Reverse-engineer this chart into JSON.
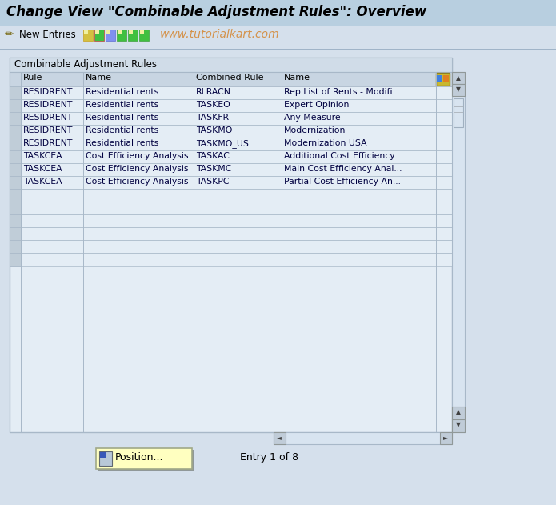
{
  "title": "Change View \"Combinable Adjustment Rules\": Overview",
  "watermark": "www.tutorialkart.com",
  "toolbar_label": "New Entries",
  "section_title": "Combinable Adjustment Rules",
  "col_headers": [
    "Rule",
    "Name",
    "Combined Rule",
    "Name"
  ],
  "rows": [
    [
      "RESIDRENT",
      "Residential rents",
      "RLRACN",
      "Rep.List of Rents - Modifi..."
    ],
    [
      "RESIDRENT",
      "Residential rents",
      "TASKEO",
      "Expert Opinion"
    ],
    [
      "RESIDRENT",
      "Residential rents",
      "TASKFR",
      "Any Measure"
    ],
    [
      "RESIDRENT",
      "Residential rents",
      "TASKMO",
      "Modernization"
    ],
    [
      "RESIDRENT",
      "Residential rents",
      "TASKMO_US",
      "Modernization USA"
    ],
    [
      "TASKCEA",
      "Cost Efficiency Analysis",
      "TASKAC",
      "Additional Cost Efficiency..."
    ],
    [
      "TASKCEA",
      "Cost Efficiency Analysis",
      "TASKMC",
      "Main Cost Efficiency Anal..."
    ],
    [
      "TASKCEA",
      "Cost Efficiency Analysis",
      "TASKPC",
      "Partial Cost Efficiency An..."
    ]
  ],
  "total_rows_display": 14,
  "button_label": "Position...",
  "entry_label": "Entry 1 of 8",
  "bg_color": "#d5e0ec",
  "title_bar_bg": "#b8cfe0",
  "toolbar_bg": "#d5e0ec",
  "table_outer_bg": "#c8d8e8",
  "table_inner_bg": "#e4edf5",
  "section_bar_bg": "#d0dce8",
  "col_header_bg": "#c8d5e2",
  "row_sel_bg": "#c0cdd8",
  "cell_border": "#a8b8c8",
  "data_text_color": "#000040",
  "watermark_color": "#d4924a",
  "scrollbar_track": "#d8e4f0",
  "scrollbar_btn": "#c0ccd8",
  "button_bg": "#ffffc0",
  "button_border": "#a0a888"
}
